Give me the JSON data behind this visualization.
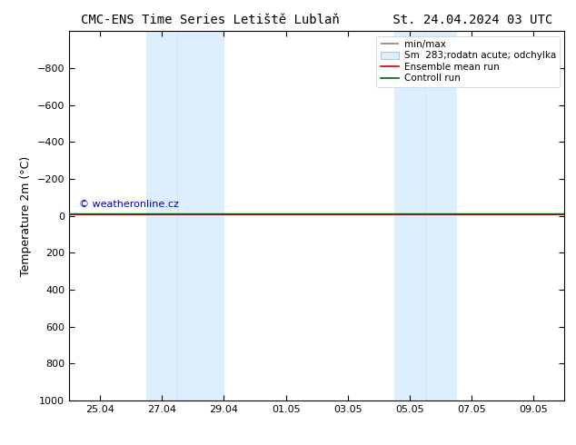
{
  "title": "CMC-ENS Time Series Letiště Lublaň",
  "title_right": "St. 24.04.2024 03 UTC",
  "ylabel": "Temperature 2m (°C)",
  "ylim_top": -1000,
  "ylim_bottom": 1000,
  "yticks": [
    -800,
    -600,
    -400,
    -200,
    0,
    200,
    400,
    600,
    800,
    1000
  ],
  "xtick_labels": [
    "25.04",
    "27.04",
    "29.04",
    "01.05",
    "03.05",
    "05.05",
    "07.05",
    "09.05"
  ],
  "xtick_positions": [
    1.0,
    3.0,
    5.0,
    7.0,
    9.0,
    11.0,
    13.0,
    15.0
  ],
  "xlim": [
    0.0,
    16.0
  ],
  "blue_bands": [
    [
      2.5,
      3.5
    ],
    [
      4.0,
      5.0
    ],
    [
      10.5,
      11.5
    ],
    [
      11.5,
      12.5
    ]
  ],
  "blue_band_color": "#ddeeff",
  "control_run_y": -15,
  "control_run_color": "#006600",
  "ensemble_mean_color": "#cc0000",
  "minmax_color": "#999999",
  "legend_labels": [
    "min/max",
    "Sm  283;rodatn acute; odchylka",
    "Ensemble mean run",
    "Controll run"
  ],
  "watermark": "© weatheronline.cz",
  "watermark_color": "#0000bb",
  "bg_color": "#ffffff",
  "plot_bg_color": "#ffffff",
  "title_fontsize": 10,
  "tick_fontsize": 8,
  "ylabel_fontsize": 9,
  "legend_fontsize": 7.5
}
